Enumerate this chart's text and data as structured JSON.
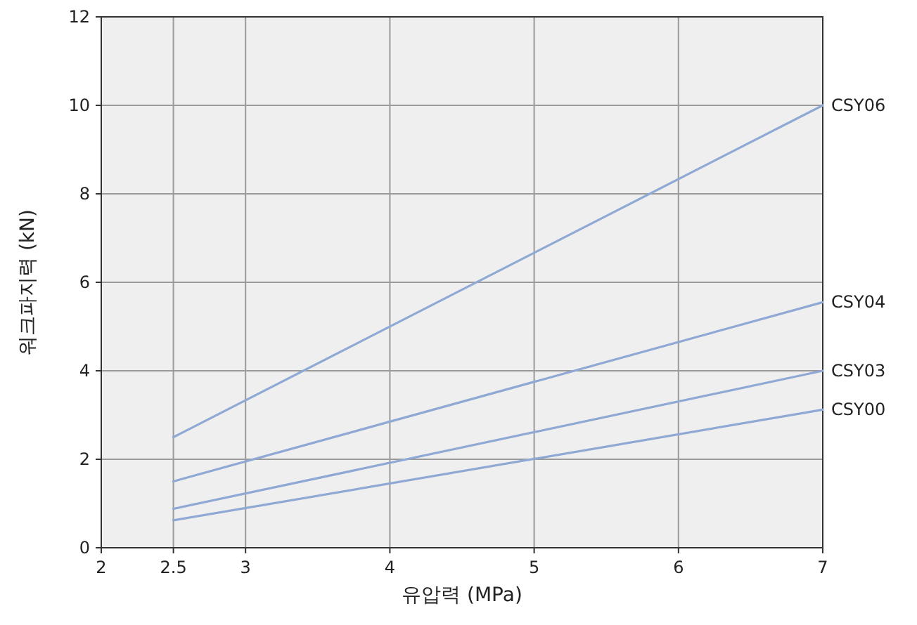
{
  "chart_data": {
    "type": "line",
    "xlabel": "유압력 (MPa)",
    "ylabel": "워크파지력 (kN)",
    "x": [
      2.5,
      7
    ],
    "series": [
      {
        "name": "CSY06",
        "color": "#8fa9d4",
        "values": [
          2.5,
          10
        ]
      },
      {
        "name": "CSY04",
        "color": "#8fa9d4",
        "values": [
          1.5,
          5.55
        ]
      },
      {
        "name": "CSY03",
        "color": "#8fa9d4",
        "values": [
          0.88,
          4.0
        ]
      },
      {
        "name": "CSY00",
        "color": "#8fa9d4",
        "values": [
          0.62,
          3.12
        ]
      }
    ],
    "xlim": [
      2,
      7
    ],
    "xticks": [
      2,
      2.5,
      3,
      4,
      5,
      6,
      7
    ],
    "ylim": [
      0,
      12
    ],
    "yticks": [
      0,
      2,
      4,
      6,
      8,
      10,
      12
    ],
    "grid": true,
    "marker": "none",
    "line_style": "solid"
  }
}
